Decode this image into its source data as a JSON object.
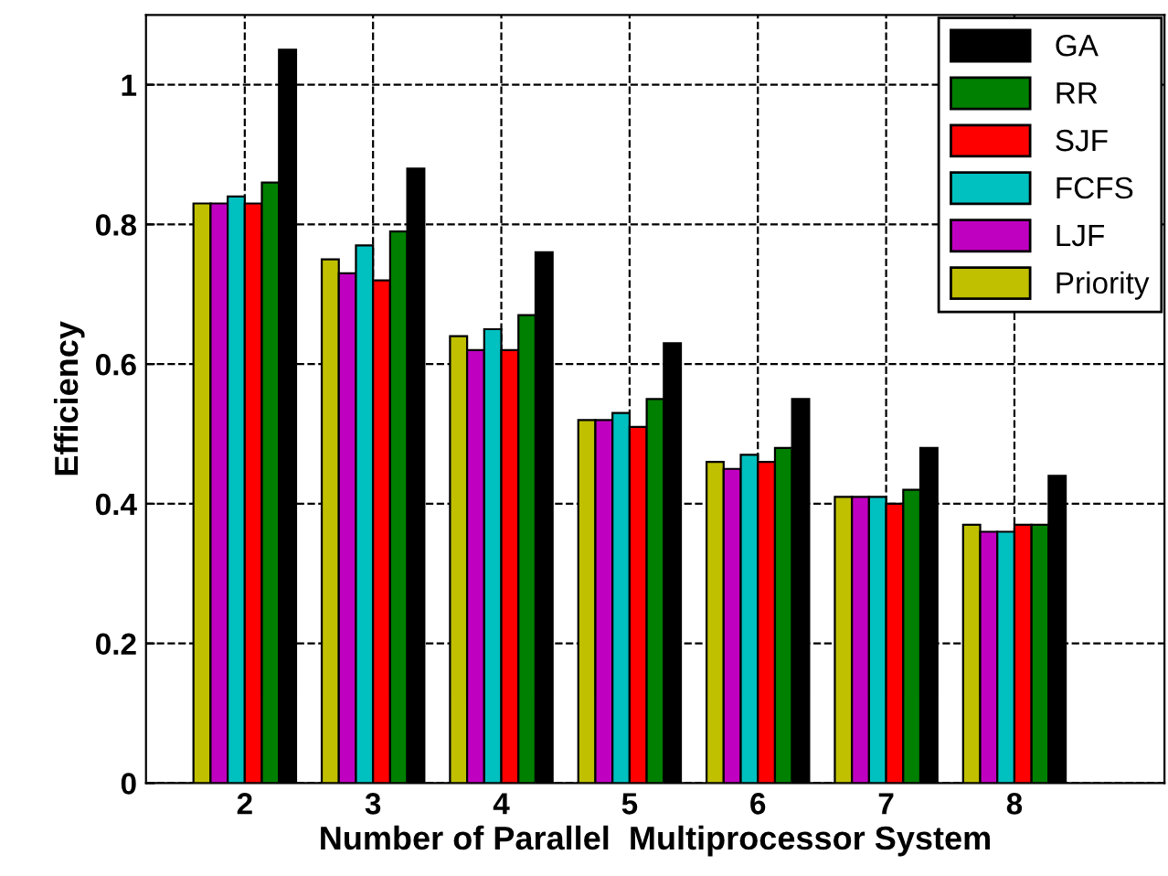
{
  "chart_data": {
    "type": "bar",
    "xlabel": "Number of Parallel  Multiprocessor System",
    "ylabel": "Efficiency",
    "categories": [
      "2",
      "3",
      "4",
      "5",
      "6",
      "7",
      "8"
    ],
    "series": [
      {
        "name": "Priority",
        "color": "#c0c000",
        "values": [
          0.83,
          0.75,
          0.64,
          0.52,
          0.46,
          0.41,
          0.37
        ]
      },
      {
        "name": "LJF",
        "color": "#c000c0",
        "values": [
          0.83,
          0.73,
          0.62,
          0.52,
          0.45,
          0.41,
          0.36
        ]
      },
      {
        "name": "FCFS",
        "color": "#00c0c0",
        "values": [
          0.84,
          0.77,
          0.65,
          0.53,
          0.47,
          0.41,
          0.36
        ]
      },
      {
        "name": "SJF",
        "color": "#ff0000",
        "values": [
          0.83,
          0.72,
          0.62,
          0.51,
          0.46,
          0.4,
          0.37
        ]
      },
      {
        "name": "RR",
        "color": "#008000",
        "values": [
          0.86,
          0.79,
          0.67,
          0.55,
          0.48,
          0.42,
          0.37
        ]
      },
      {
        "name": "GA",
        "color": "#000000",
        "values": [
          1.05,
          0.88,
          0.76,
          0.63,
          0.55,
          0.48,
          0.44
        ]
      }
    ],
    "ylim": [
      0,
      1.1
    ],
    "yticks": [
      0,
      0.2,
      0.4,
      0.6,
      0.8,
      1
    ],
    "grid": true,
    "legend": "top right"
  }
}
